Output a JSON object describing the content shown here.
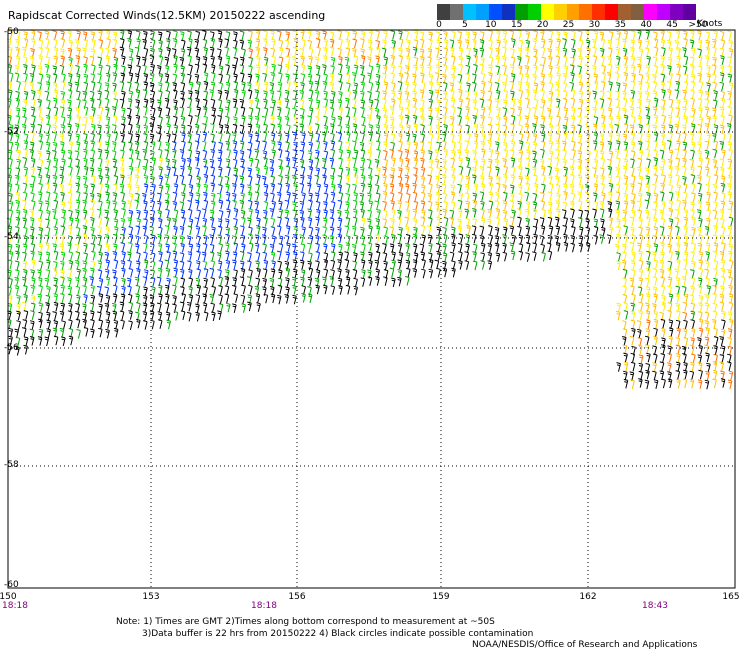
{
  "title": "Rapidscat Corrected Winds(12.5KM) 20150222 ascending",
  "colorbar": {
    "labels": [
      "0",
      "5",
      "10",
      "15",
      "20",
      "25",
      "30",
      "35",
      "40",
      "45",
      ">50"
    ],
    "units": "Knots",
    "colors": [
      "#404040",
      "#707070",
      "#00c0ff",
      "#00a0ff",
      "#0050ff",
      "#1030c0",
      "#00a000",
      "#00d000",
      "#ffff00",
      "#ffd000",
      "#ffa000",
      "#ff7000",
      "#ff3000",
      "#ff0000",
      "#a06030",
      "#806040",
      "#ff00ff",
      "#c000ff",
      "#8000c0",
      "#6000a0"
    ]
  },
  "lat_labels": [
    "-50",
    "-52",
    "-54",
    "-56",
    "-58",
    "-60"
  ],
  "lon_labels": [
    "150",
    "153",
    "156",
    "159",
    "162",
    "165"
  ],
  "times": [
    "18:18",
    "18:18",
    "18:43"
  ],
  "notes": {
    "line1": "Note: 1) Times are GMT 2)Times along bottom correspond to measurement at ~50S",
    "line2": "3)Data buffer is 22 hrs from 20150222 4) Black circles indicate possible contamination",
    "credit": "NOAA/NESDIS/Office of Research and Applications"
  }
}
